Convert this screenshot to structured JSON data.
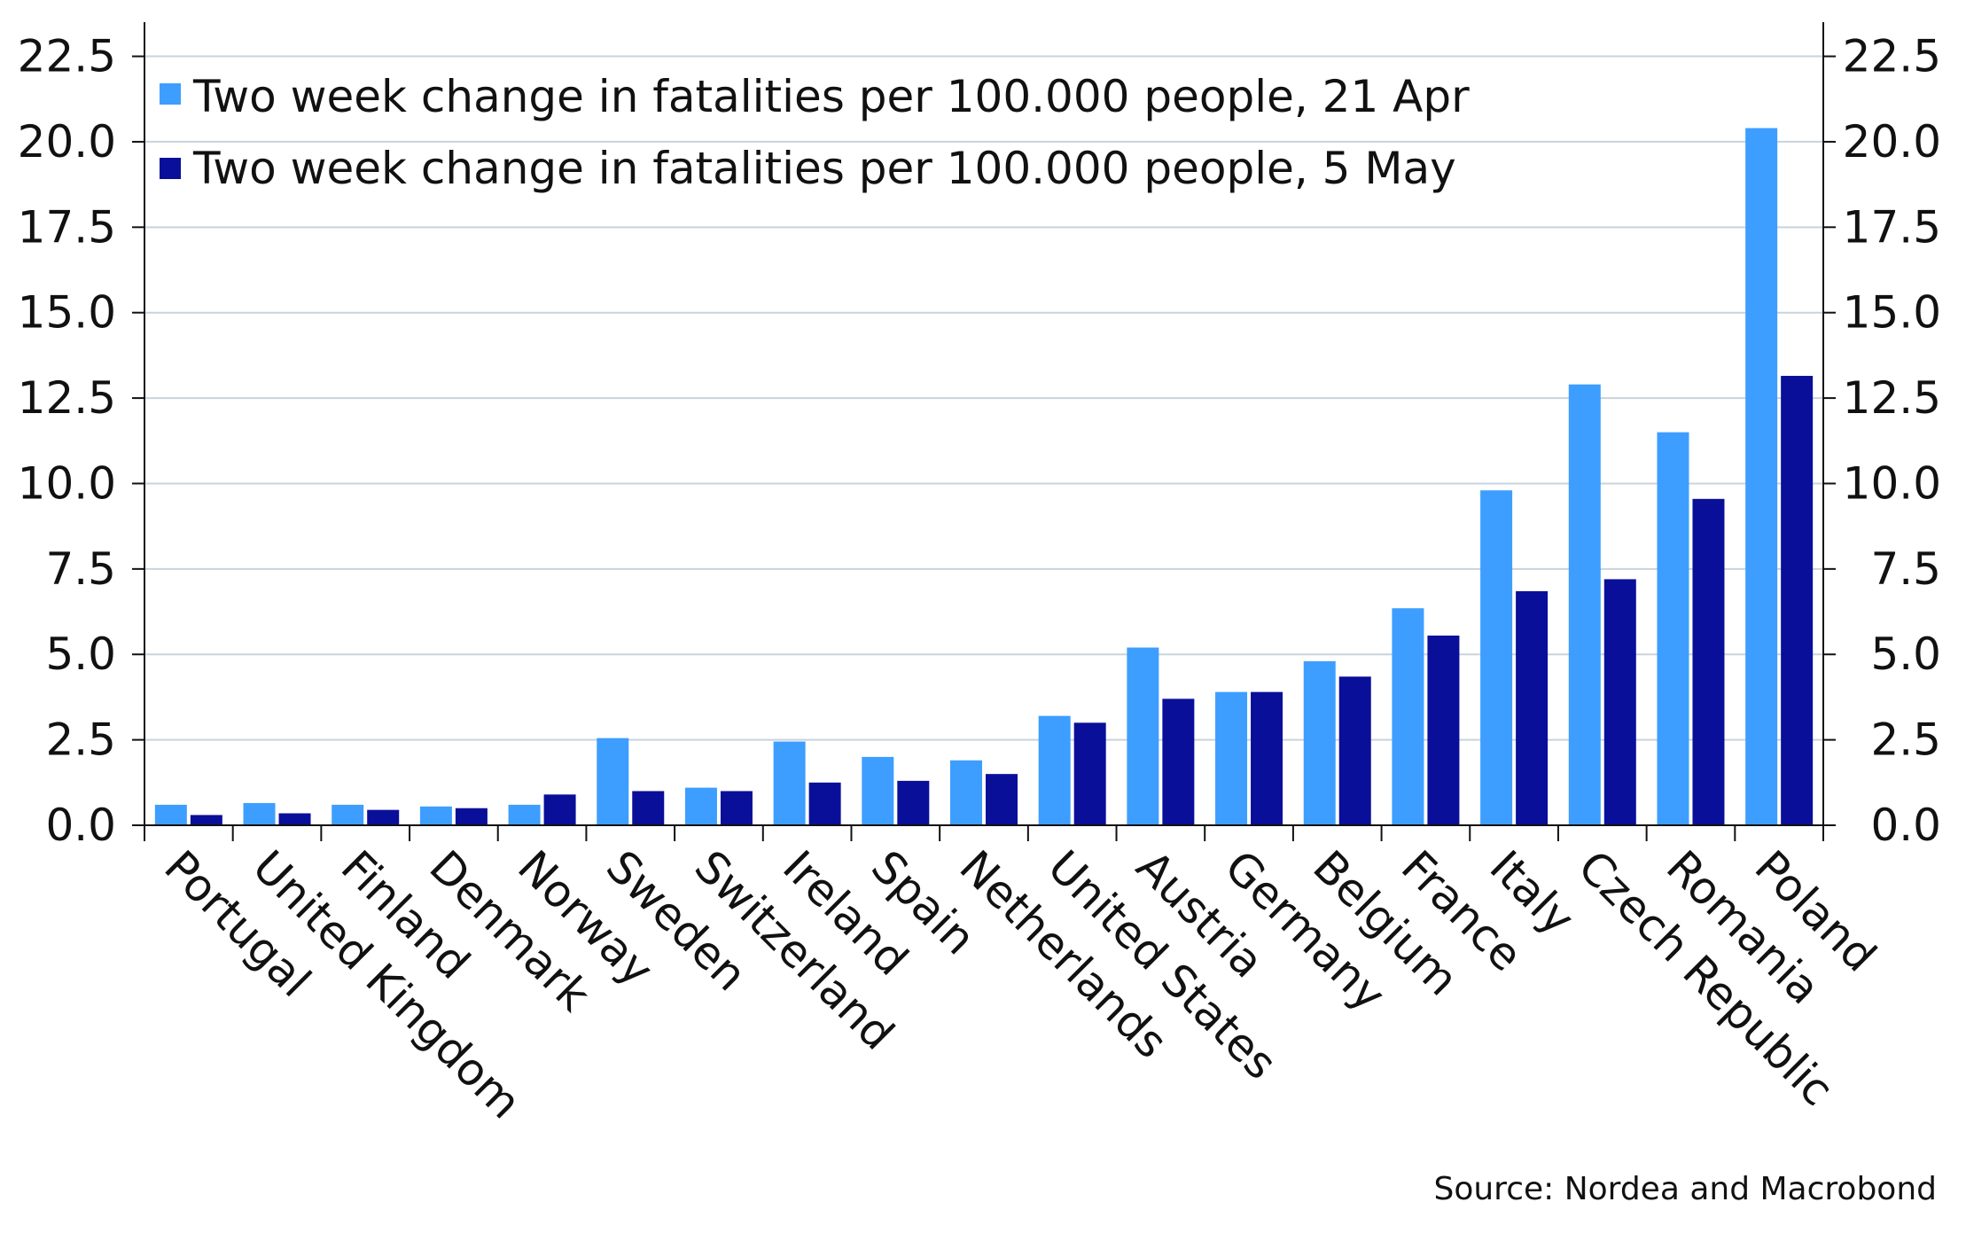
{
  "chart_data": {
    "type": "bar",
    "categories": [
      "Portugal",
      "United Kingdom",
      "Finland",
      "Denmark",
      "Norway",
      "Sweden",
      "Switzerland",
      "Ireland",
      "Spain",
      "Netherlands",
      "United States",
      "Austria",
      "Germany",
      "Belgium",
      "France",
      "Italy",
      "Czech Republic",
      "Romania",
      "Poland"
    ],
    "series": [
      {
        "name": "Two week change in fatalities per 100.000 people, 21 Apr",
        "color": "#3d9eff",
        "values": [
          0.6,
          0.65,
          0.6,
          0.55,
          0.6,
          2.55,
          1.1,
          2.45,
          2.0,
          1.9,
          3.2,
          5.2,
          3.9,
          4.8,
          6.35,
          9.8,
          12.9,
          11.5,
          20.4
        ]
      },
      {
        "name": "Two week change in fatalities per 100.000 people, 5 May",
        "color": "#0a0f99",
        "values": [
          0.3,
          0.35,
          0.45,
          0.5,
          0.9,
          1.0,
          1.0,
          1.25,
          1.3,
          1.5,
          3.0,
          3.7,
          3.9,
          4.35,
          5.55,
          6.85,
          7.2,
          9.55,
          13.15
        ]
      }
    ],
    "yticks": [
      "0.0",
      "2.5",
      "5.0",
      "7.5",
      "10.0",
      "12.5",
      "15.0",
      "17.5",
      "20.0",
      "22.5"
    ],
    "ylim": [
      0,
      23.5
    ],
    "grid": true,
    "legend_position": "top-left",
    "source": "Source: Nordea and Macrobond"
  }
}
